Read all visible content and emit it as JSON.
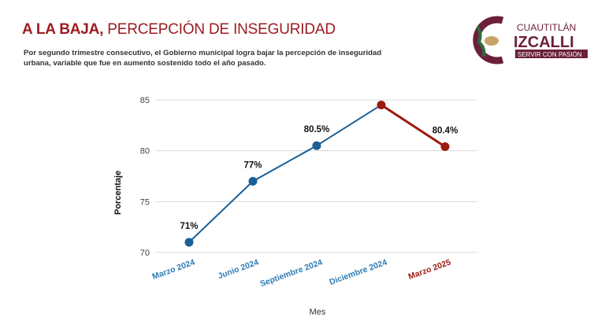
{
  "header": {
    "title_bold": "A LA BAJA,",
    "title_rest": " PERCEPCIÓN DE INSEGURIDAD",
    "subtitle": "Por segundo trimestre consecutivo, el Gobierno municipal logra bajar la percepción de inseguridad urbana, variable que fue en aumento sostenido todo el año pasado."
  },
  "logo": {
    "line1": "CUAUTITLÁN",
    "line2": "IZCALLI",
    "line3": "SERVIR CON PASIÓN",
    "color": "#6b1f3a"
  },
  "chart_data": {
    "type": "line",
    "xlabel": "Mes",
    "ylabel": "Porcentaje",
    "categories": [
      "Marzo 2024",
      "Junio 2024",
      "Septiembre 2024",
      "Diciembre 2024",
      "Marzo 2025"
    ],
    "values": [
      71,
      77,
      80.5,
      84.5,
      80.4
    ],
    "data_labels": [
      "71%",
      "77%",
      "80.5%",
      "",
      "80.4%"
    ],
    "ylim": [
      70,
      85
    ],
    "yticks": [
      70,
      75,
      80,
      85
    ],
    "grid": true,
    "colors": {
      "rising": "#1a5f96",
      "falling": "#9b1b10",
      "category_blue": "#2e7db5",
      "category_red": "#9b1b10"
    }
  }
}
